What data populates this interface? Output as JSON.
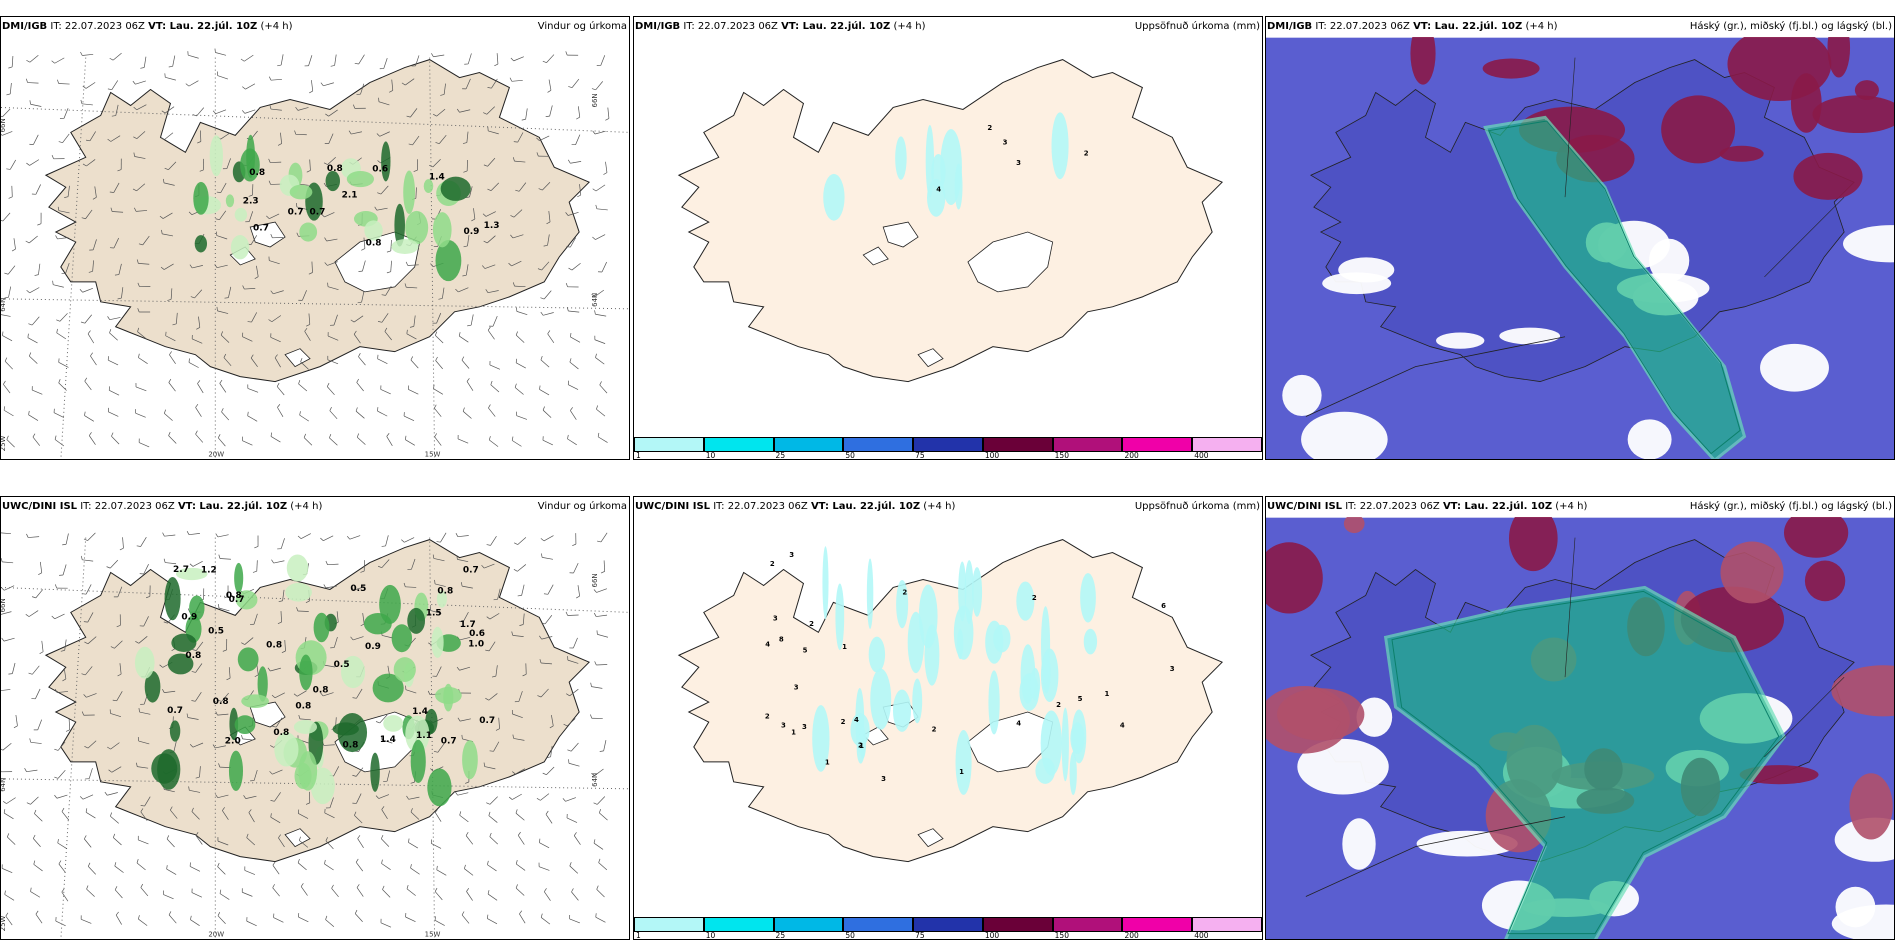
{
  "init_time": "IT: 22.07.2023 06Z",
  "valid_time": "VT: Lau. 22.júl. 10Z",
  "lead": "(+4 h)",
  "panels": [
    {
      "model": "DMI/IGB",
      "title": "Vindur og úrkoma",
      "type": "wind"
    },
    {
      "model": "DMI/IGB",
      "title": "Uppsöfnuð úrkoma (mm)",
      "type": "precip"
    },
    {
      "model": "DMI/IGB",
      "title": "Háský (gr.), miðský (fj.bl.) og lágský (bl.)",
      "type": "cloud"
    },
    {
      "model": "UWC/DINI ISL",
      "title": "Vindur og úrkoma",
      "type": "wind"
    },
    {
      "model": "UWC/DINI ISL",
      "title": "Uppsöfnuð úrkoma (mm)",
      "type": "precip"
    },
    {
      "model": "UWC/DINI ISL",
      "title": "Háský (gr.), miðský (fj.bl.) og lágský (bl.)",
      "type": "cloud"
    }
  ],
  "axis_labels": {
    "lat66": "66N",
    "lat64": "64N",
    "lon25": "25W",
    "lon20": "20W",
    "lon15": "15W"
  },
  "colorbar": {
    "labels": [
      "1",
      "10",
      "25",
      "50",
      "75",
      "100",
      "150",
      "200",
      "400"
    ],
    "colors": [
      "#b3f7f7",
      "#00e5ee",
      "#00b8e6",
      "#2f6fe0",
      "#2233aa",
      "#6a0038",
      "#b0107a",
      "#f000a8",
      "#f5b0f0"
    ]
  },
  "land_color": "#ecdfcc",
  "precip_land_color": "#fdf0e2",
  "wind_values_top": [
    "0.7",
    "0.7",
    "0.8",
    "0.8",
    "2.3",
    "0.9",
    "1.4",
    "1.3",
    "2.1",
    "0.8",
    "0.7",
    "0.6"
  ],
  "wind_values_bottom": [
    "0.5",
    "1.1",
    "0.8",
    "0.5",
    "0.7",
    "0.8",
    "0.8",
    "0.9",
    "1.0",
    "1.2",
    "0.7",
    "0.8",
    "0.7",
    "0.7",
    "0.8",
    "0.9",
    "0.8",
    "0.8",
    "0.7",
    "0.5",
    "2.7",
    "0.8",
    "0.6",
    "2.0",
    "0.8",
    "1.7",
    "1.4",
    "1.5",
    "1.4"
  ],
  "precip_values_top": [
    "2",
    "4",
    "3",
    "2",
    "3"
  ],
  "precip_values_bottom": [
    "1",
    "1",
    "1",
    "3",
    "3",
    "2",
    "2",
    "3",
    "2",
    "2",
    "1",
    "5",
    "5",
    "2",
    "4",
    "3",
    "2",
    "2",
    "3",
    "3",
    "6",
    "3",
    "4",
    "2",
    "2",
    "4",
    "8",
    "4",
    "1",
    "1"
  ]
}
